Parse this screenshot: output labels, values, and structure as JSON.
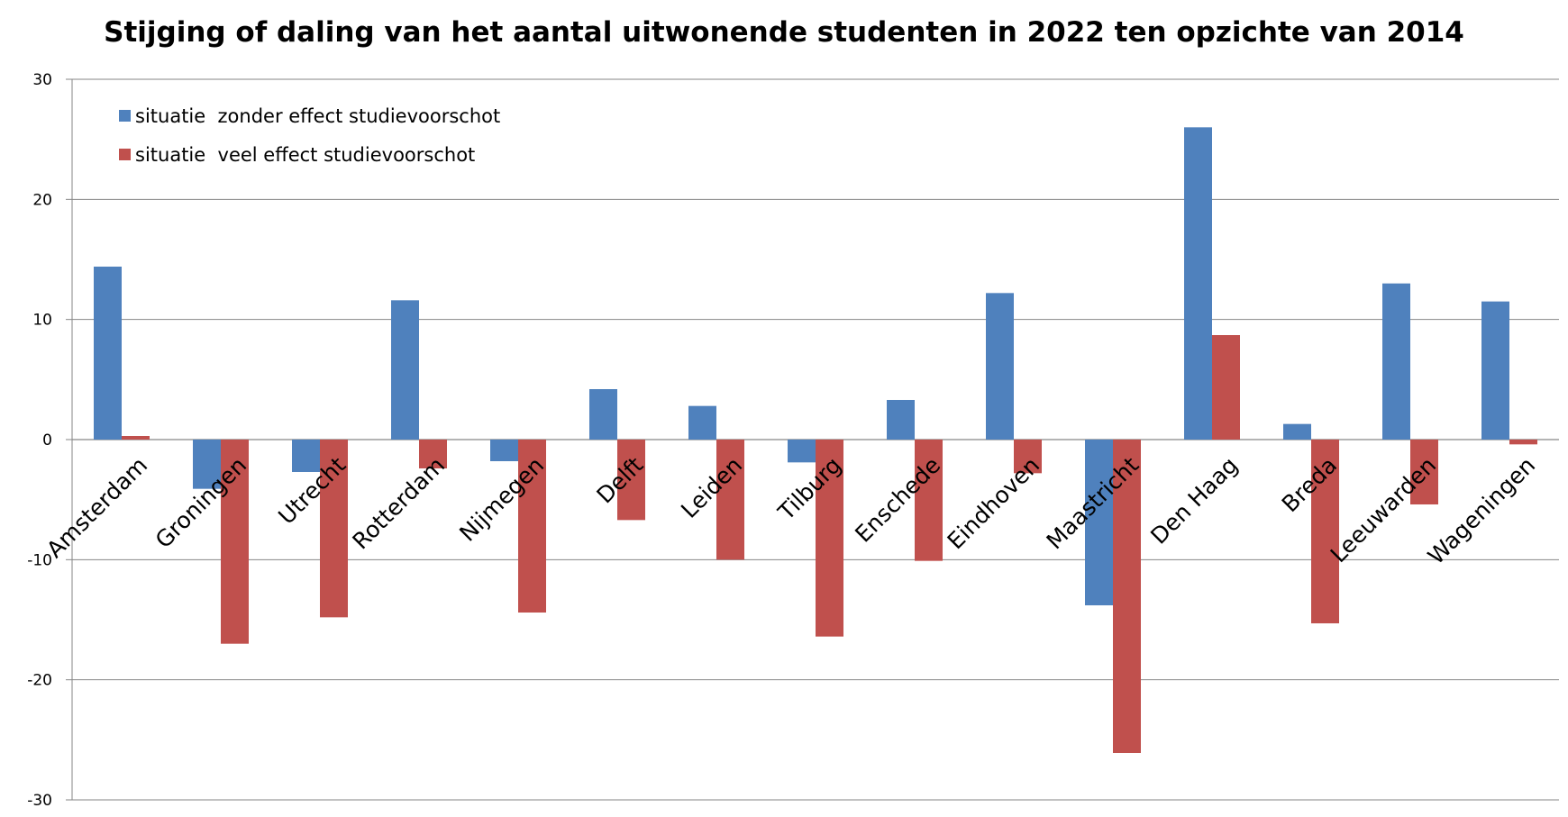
{
  "chart_data": {
    "type": "bar",
    "title": "Stijging of daling van het aantal uitwonende studenten in 2022 ten opzichte van 2014",
    "xlabel": "",
    "ylabel": "",
    "ylim": [
      -30,
      30
    ],
    "yticks": [
      30,
      20,
      10,
      0,
      -10,
      -20,
      -30
    ],
    "grid": true,
    "legend_position": "top-left",
    "categories": [
      "Amsterdam",
      "Groningen",
      "Utrecht",
      "Rotterdam",
      "Nijmegen",
      "Delft",
      "Leiden",
      "Tilburg",
      "Enschede",
      "Eindhoven",
      "Maastricht",
      "Den Haag",
      "Breda",
      "Leeuwarden",
      "Wageningen"
    ],
    "series": [
      {
        "name": "situatie  zonder effect studievoorschot",
        "color": "#4F81BD",
        "values": [
          14.4,
          -4.1,
          -2.7,
          11.6,
          -1.8,
          4.2,
          2.8,
          -1.9,
          3.3,
          12.2,
          -13.8,
          26.0,
          1.3,
          13.0,
          11.5
        ]
      },
      {
        "name": "situatie  veel effect studievoorschot",
        "color": "#C0504D",
        "values": [
          0.3,
          -17.0,
          -14.8,
          -2.4,
          -14.4,
          -6.7,
          -10.0,
          -16.4,
          -10.1,
          -2.8,
          -26.1,
          8.7,
          -15.3,
          -5.4,
          -0.4
        ]
      }
    ]
  }
}
